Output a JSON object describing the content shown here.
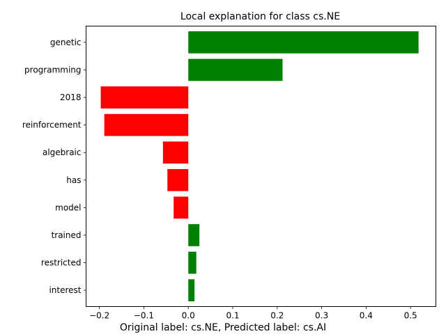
{
  "chart_data": {
    "type": "bar",
    "orientation": "horizontal",
    "title": "Local explanation for class cs.NE",
    "xlabel": "",
    "ylabel": "",
    "categories": [
      "genetic",
      "programming",
      "2018",
      "reinforcement",
      "algebraic",
      "has",
      "model",
      "trained",
      "restricted",
      "interest"
    ],
    "values": [
      0.518,
      0.212,
      -0.197,
      -0.189,
      -0.057,
      -0.047,
      -0.033,
      0.025,
      0.018,
      0.014
    ],
    "xlim": [
      -0.23,
      0.557
    ],
    "xticks": [
      -0.2,
      -0.1,
      0.0,
      0.1,
      0.2,
      0.3,
      0.4,
      0.5
    ],
    "xtick_labels": [
      "−0.2",
      "−0.1",
      "0.0",
      "0.1",
      "0.2",
      "0.3",
      "0.4",
      "0.5"
    ],
    "positive_color": "#008000",
    "negative_color": "#ff0000",
    "grid": false,
    "legend": "none"
  },
  "caption": "Original label: cs.NE, Predicted label: cs.AI"
}
